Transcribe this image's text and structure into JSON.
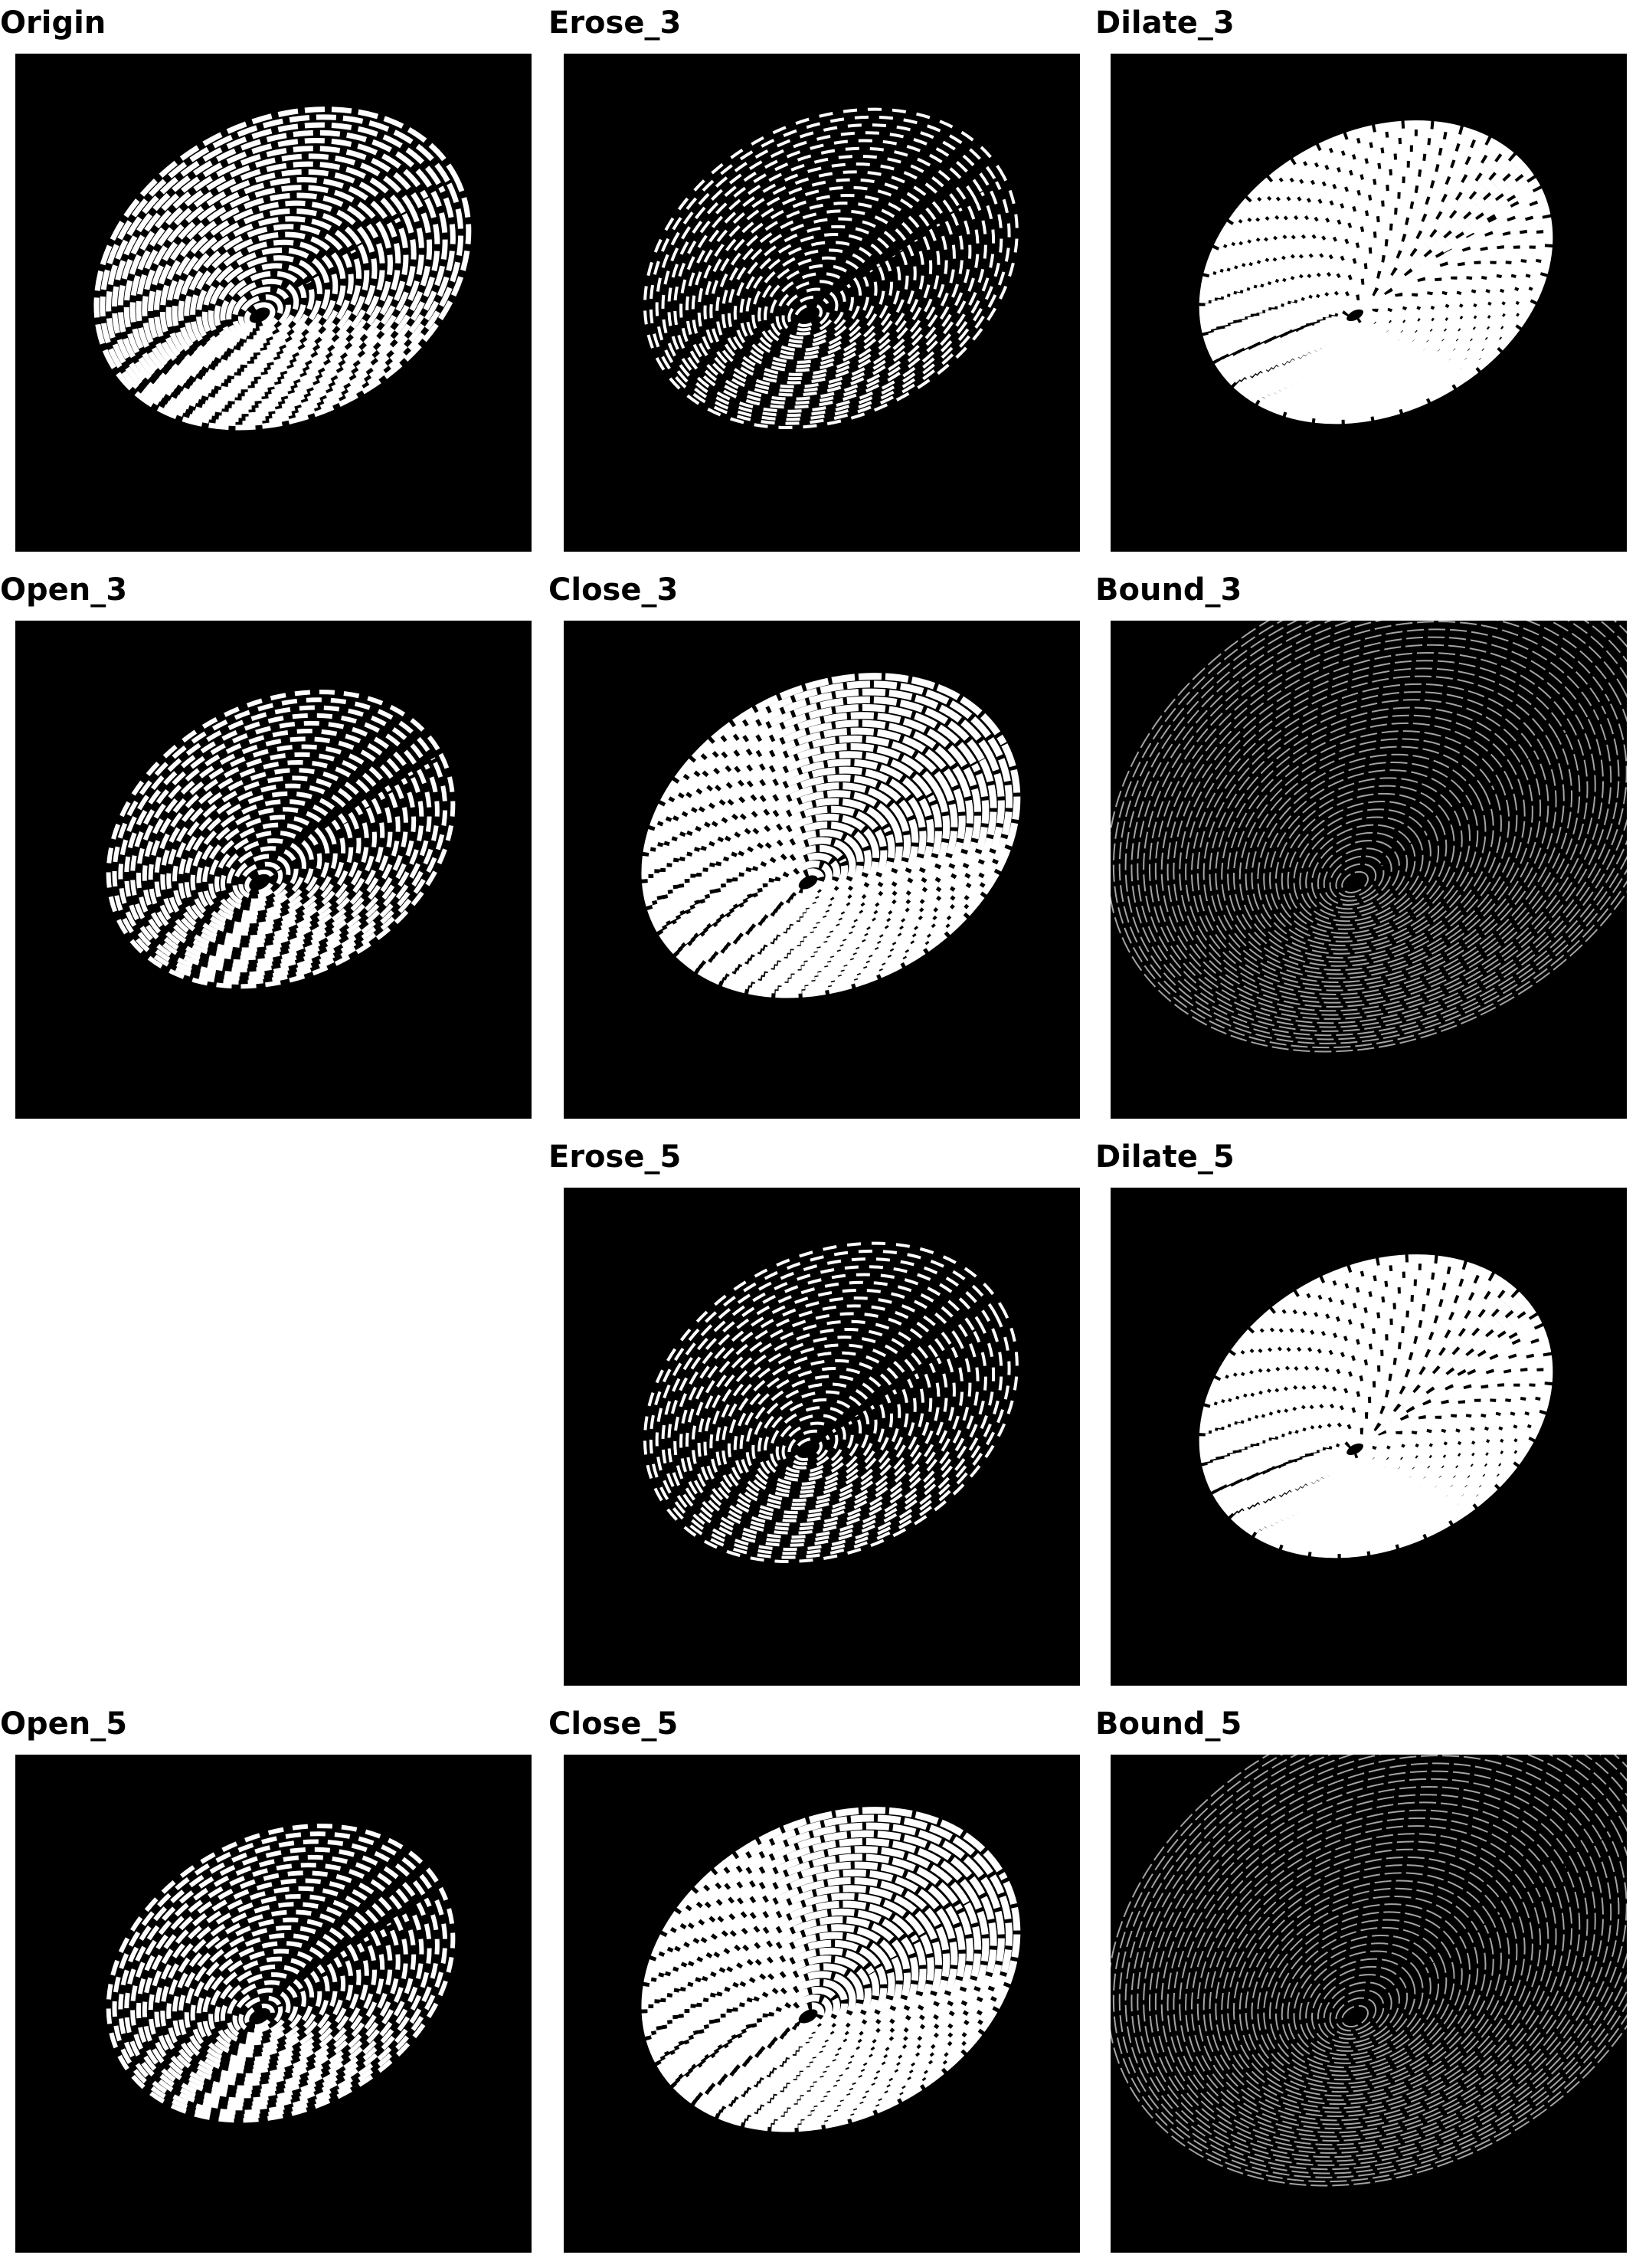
{
  "figure": {
    "panels": [
      {
        "id": "origin",
        "title": "Origin",
        "variant": "origin"
      },
      {
        "id": "erose3",
        "title": "Erose_3",
        "variant": "erode"
      },
      {
        "id": "dilate3",
        "title": "Dilate_3",
        "variant": "dilate"
      },
      {
        "id": "open3",
        "title": "Open_3",
        "variant": "open"
      },
      {
        "id": "close3",
        "title": "Close_3",
        "variant": "close"
      },
      {
        "id": "bound3",
        "title": "Bound_3",
        "variant": "bound"
      },
      {
        "id": "erose5",
        "title": "Erose_5",
        "variant": "erode"
      },
      {
        "id": "dilate5",
        "title": "Dilate_5",
        "variant": "dilate"
      },
      {
        "id": "open5",
        "title": "Open_5",
        "variant": "open"
      },
      {
        "id": "close5",
        "title": "Close_5",
        "variant": "close"
      },
      {
        "id": "bound5",
        "title": "Bound_5",
        "variant": "bound"
      }
    ],
    "colors": {
      "page_background": "#ffffff",
      "image_background": "#000000",
      "ridge": "#ffffff",
      "bound_ridge": "#bfbfbf",
      "title": "#000000"
    }
  }
}
